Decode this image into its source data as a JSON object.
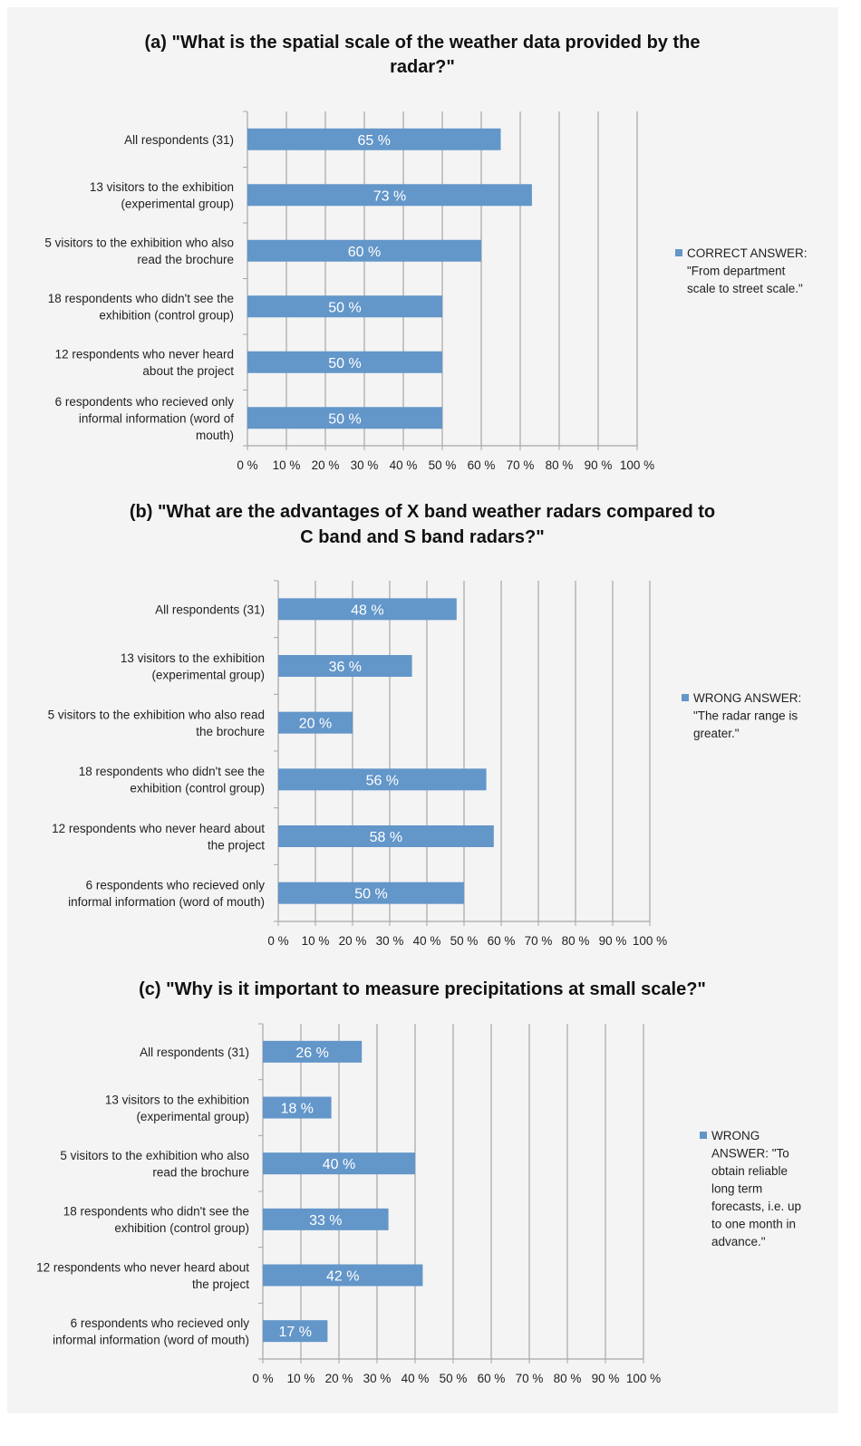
{
  "colors": {
    "bar": "#6396c9",
    "grid": "#a6a6a6",
    "background": "#f4f4f4"
  },
  "chart_data": [
    {
      "type": "bar",
      "orientation": "horizontal",
      "title": [
        "(a) \"What is the spatial scale of the weather data provided by the",
        "radar?\""
      ],
      "categories": [
        [
          "All respondents (31)"
        ],
        [
          "13 visitors to the exhibition",
          "(experimental group)"
        ],
        [
          "5 visitors to the exhibition who also",
          "read the brochure"
        ],
        [
          "18 respondents who didn't see the",
          "exhibition (control group)"
        ],
        [
          "12 respondents who never heard",
          "about the project"
        ],
        [
          "6 respondents who recieved only",
          "informal information (word of",
          "mouth)"
        ]
      ],
      "values": [
        65,
        73,
        60,
        50,
        50,
        50
      ],
      "value_labels": [
        "65 %",
        "73 %",
        "60 %",
        "50 %",
        "50 %",
        "50 %"
      ],
      "xlim": [
        0,
        100
      ],
      "xticks": [
        "0 %",
        "10 %",
        "20 %",
        "30 %",
        "40 %",
        "50 %",
        "60 %",
        "70 %",
        "80 %",
        "90 %",
        "100 %"
      ],
      "grid": true,
      "legend": {
        "placement": "right",
        "lines": [
          "CORRECT ANSWER:",
          "\"From department",
          "scale to street scale.\""
        ]
      }
    },
    {
      "type": "bar",
      "orientation": "horizontal",
      "title": [
        "(b) \"What are the advantages of X band weather radars compared to",
        "C band and S band radars?\""
      ],
      "categories": [
        [
          "All respondents (31)"
        ],
        [
          "13 visitors to the exhibition",
          "(experimental group)"
        ],
        [
          "5 visitors to the exhibition who also read",
          "the brochure"
        ],
        [
          "18 respondents who didn't see the",
          "exhibition (control group)"
        ],
        [
          "12 respondents who never heard about",
          "the project"
        ],
        [
          "6 respondents who recieved only",
          "informal information (word of mouth)"
        ]
      ],
      "values": [
        48,
        36,
        20,
        56,
        58,
        50
      ],
      "value_labels": [
        "48 %",
        "36 %",
        "20 %",
        "56 %",
        "58 %",
        "50 %"
      ],
      "xlim": [
        0,
        100
      ],
      "xticks": [
        "0 %",
        "10 %",
        "20 %",
        "30 %",
        "40 %",
        "50 %",
        "60 %",
        "70 %",
        "80 %",
        "90 %",
        "100 %"
      ],
      "grid": true,
      "legend": {
        "placement": "right",
        "lines": [
          "WRONG ANSWER:",
          "\"The radar range is",
          "greater.\""
        ]
      }
    },
    {
      "type": "bar",
      "orientation": "horizontal",
      "title": [
        "(c) \"Why is it important to measure precipitations at small scale?\""
      ],
      "categories": [
        [
          "All respondents (31)"
        ],
        [
          "13 visitors to the exhibition",
          "(experimental group)"
        ],
        [
          "5 visitors to the exhibition who also",
          "read the brochure"
        ],
        [
          "18 respondents who didn't see the",
          "exhibition (control group)"
        ],
        [
          "12 respondents who never heard about",
          "the project"
        ],
        [
          "6 respondents who recieved only",
          "informal information (word of mouth)"
        ]
      ],
      "values": [
        26,
        18,
        40,
        33,
        42,
        17
      ],
      "value_labels": [
        "26 %",
        "18 %",
        "40 %",
        "33 %",
        "42 %",
        "17 %"
      ],
      "xlim": [
        0,
        100
      ],
      "xticks": [
        "0 %",
        "10 %",
        "20 %",
        "30 %",
        "40 %",
        "50 %",
        "60 %",
        "70 %",
        "80 %",
        "90 %",
        "100 %"
      ],
      "grid": true,
      "legend": {
        "placement": "right",
        "lines": [
          "WRONG",
          "ANSWER: \"To",
          "obtain reliable",
          "long term",
          "forecasts, i.e. up",
          "to one month in",
          "advance.\""
        ]
      }
    }
  ]
}
